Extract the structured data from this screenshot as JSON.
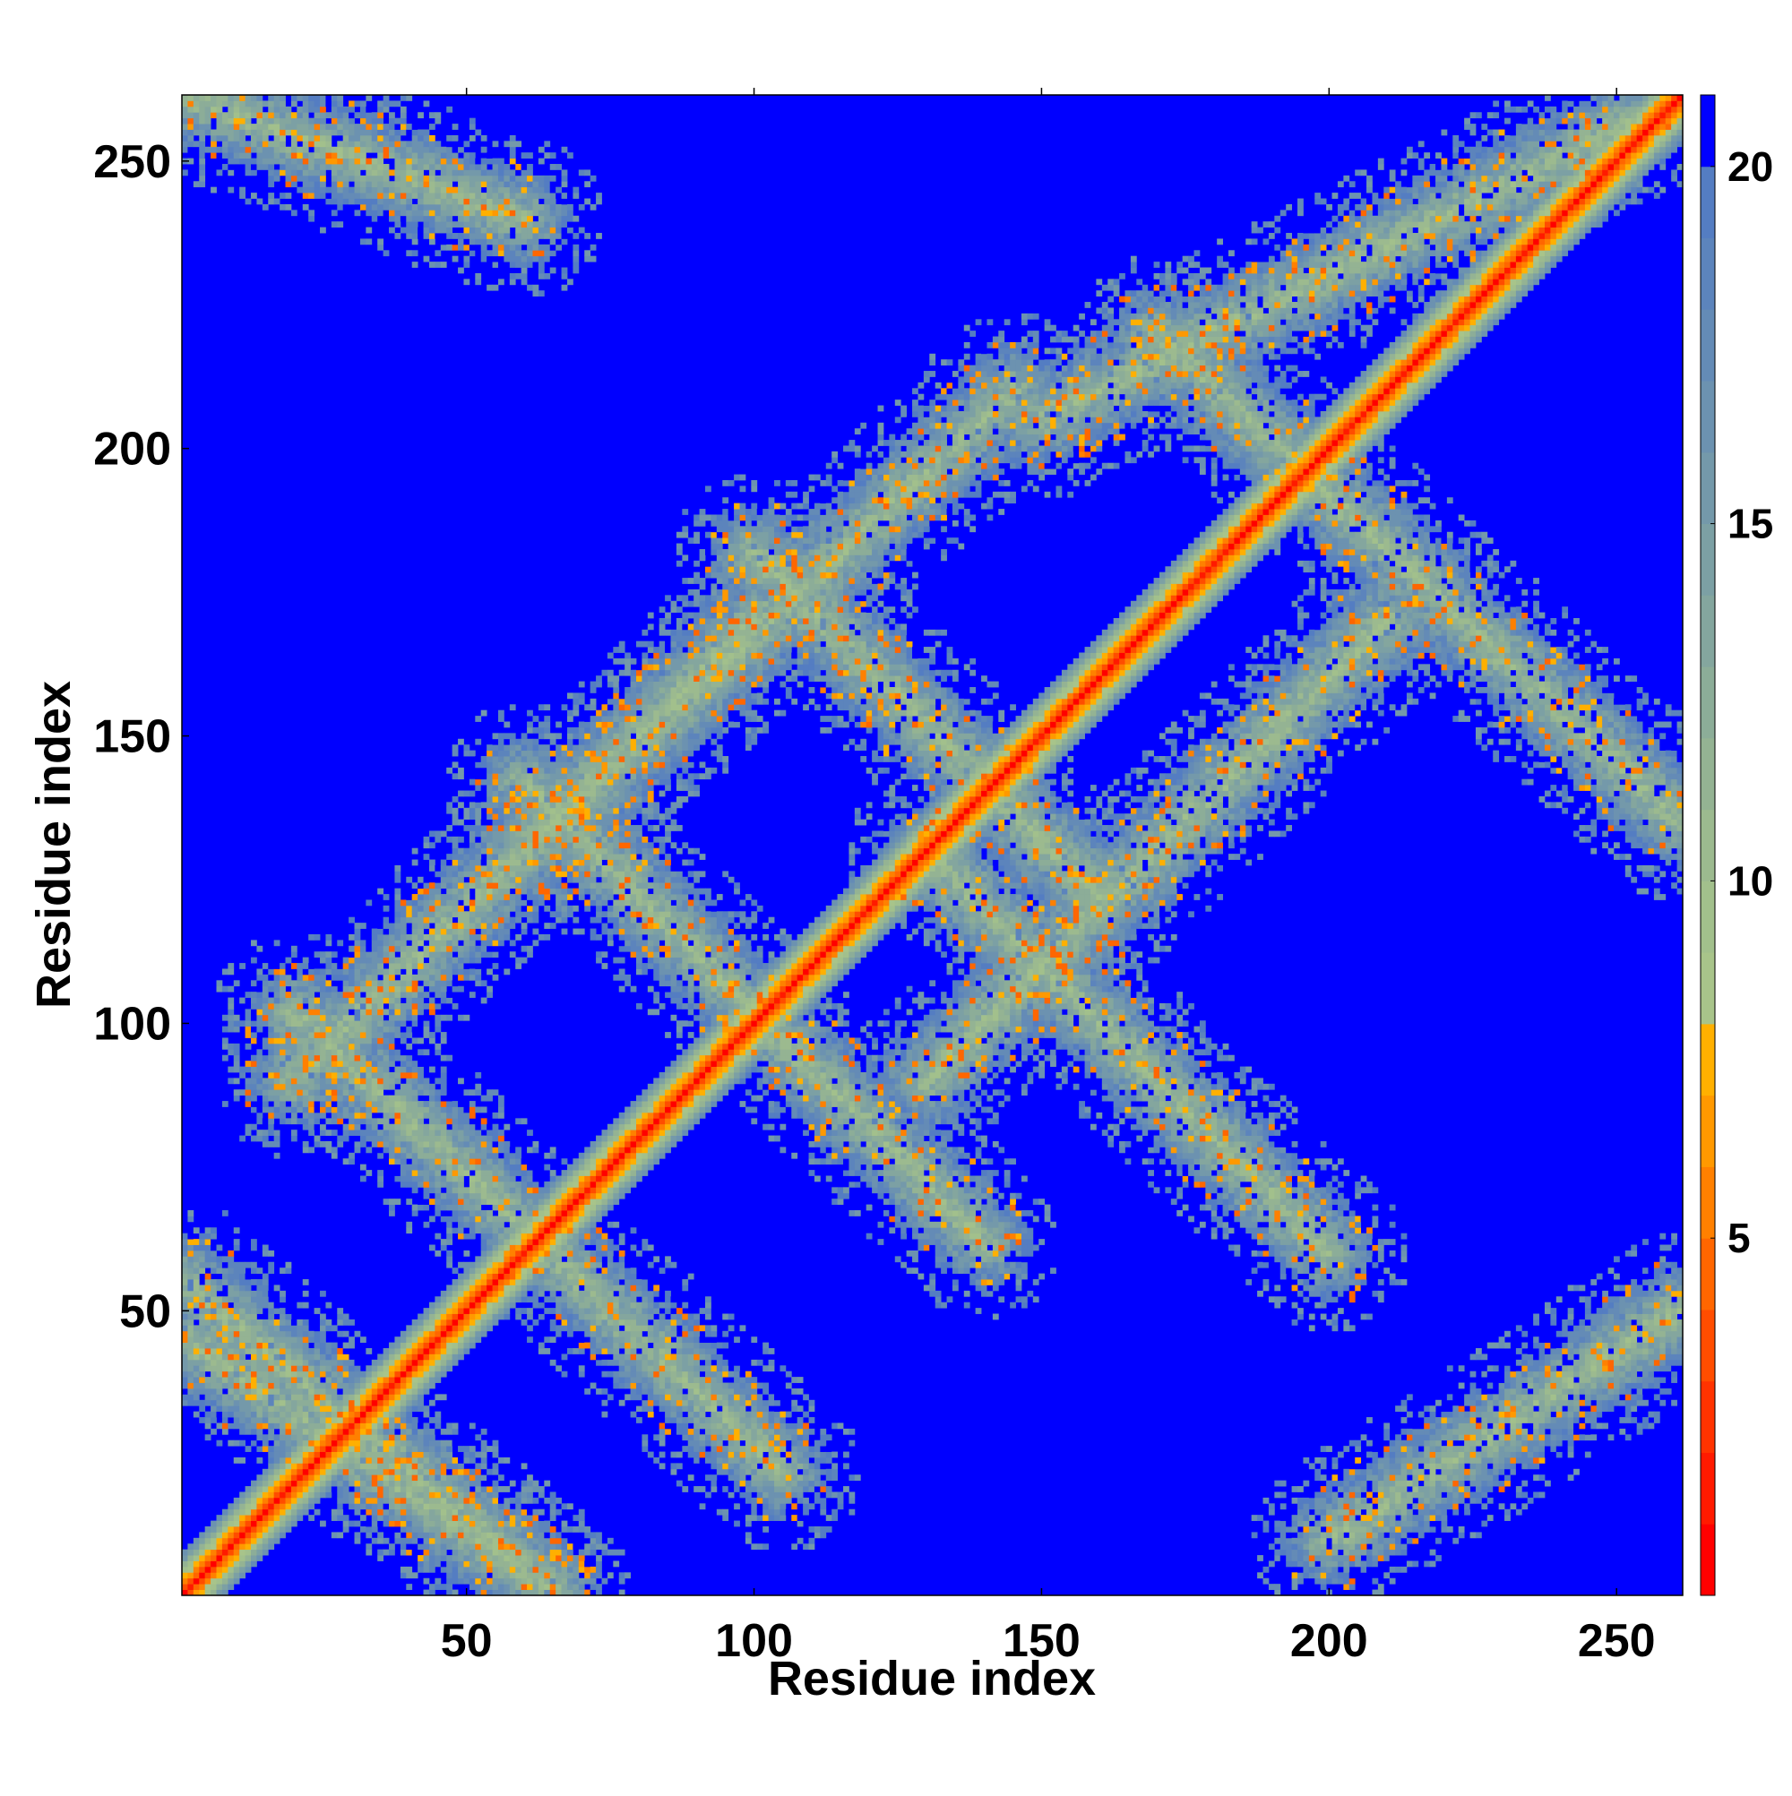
{
  "chart_data": {
    "type": "heatmap",
    "title": "",
    "xlabel": "Residue index",
    "ylabel": "Residue index",
    "xlim": [
      1,
      261
    ],
    "ylim": [
      1,
      261
    ],
    "x_ticks": [
      50,
      100,
      150,
      200,
      250
    ],
    "y_ticks": [
      50,
      100,
      150,
      200,
      250
    ],
    "colorbar": {
      "range": [
        0,
        21
      ],
      "ticks": [
        5,
        10,
        15,
        20
      ],
      "levels": [
        {
          "upto": 1,
          "color": "#ff0000"
        },
        {
          "upto": 2,
          "color": "#ff1a00"
        },
        {
          "upto": 3,
          "color": "#ff3300"
        },
        {
          "upto": 4,
          "color": "#ff4d00"
        },
        {
          "upto": 5,
          "color": "#ff6600"
        },
        {
          "upto": 6,
          "color": "#ff8000"
        },
        {
          "upto": 7,
          "color": "#ff9900"
        },
        {
          "upto": 8,
          "color": "#ffb000"
        },
        {
          "upto": 9,
          "color": "#a8c48a"
        },
        {
          "upto": 10,
          "color": "#a2c08c"
        },
        {
          "upto": 11,
          "color": "#9cba8f"
        },
        {
          "upto": 12,
          "color": "#94b393"
        },
        {
          "upto": 13,
          "color": "#8cad98"
        },
        {
          "upto": 14,
          "color": "#84a69e"
        },
        {
          "upto": 15,
          "color": "#7ca0a4"
        },
        {
          "upto": 16,
          "color": "#7499aa"
        },
        {
          "upto": 17,
          "color": "#6c92b0"
        },
        {
          "upto": 18,
          "color": "#648bb6"
        },
        {
          "upto": 19,
          "color": "#5c84bc"
        },
        {
          "upto": 20,
          "color": "#547dc2"
        },
        {
          "upto": 21,
          "color": "#0000ff"
        }
      ]
    },
    "background_value": 21,
    "grid": false,
    "structure": {
      "main_diagonal": {
        "from": 1,
        "to": 261,
        "core_value": 1
      },
      "antidiagonal_bands": [
        {
          "x_from": 1,
          "y_from": 55,
          "x_to": 65,
          "y_to": 1
        },
        {
          "x_from": 20,
          "y_from": 102,
          "x_to": 105,
          "y_to": 22
        },
        {
          "x_from": 60,
          "y_from": 142,
          "x_to": 140,
          "y_to": 62
        },
        {
          "x_from": 100,
          "y_from": 182,
          "x_to": 160,
          "y_to": 122
        },
        {
          "x_from": 130,
          "y_from": 130,
          "x_to": 200,
          "y_to": 60
        },
        {
          "x_from": 170,
          "y_from": 220,
          "x_to": 261,
          "y_to": 135
        },
        {
          "x_from": 1,
          "y_from": 261,
          "x_to": 60,
          "y_to": 240
        }
      ],
      "diagonal_bands": [
        {
          "x_from": 20,
          "y_from": 90,
          "x_to": 100,
          "y_to": 170
        },
        {
          "x_from": 60,
          "y_from": 130,
          "x_to": 145,
          "y_to": 210
        },
        {
          "x_from": 130,
          "y_from": 90,
          "x_to": 210,
          "y_to": 170
        },
        {
          "x_from": 150,
          "y_from": 205,
          "x_to": 261,
          "y_to": 261
        },
        {
          "x_from": 1,
          "y_from": 45,
          "x_to": 60,
          "y_to": 5
        },
        {
          "x_from": 200,
          "y_from": 10,
          "x_to": 261,
          "y_to": 50
        }
      ]
    }
  }
}
